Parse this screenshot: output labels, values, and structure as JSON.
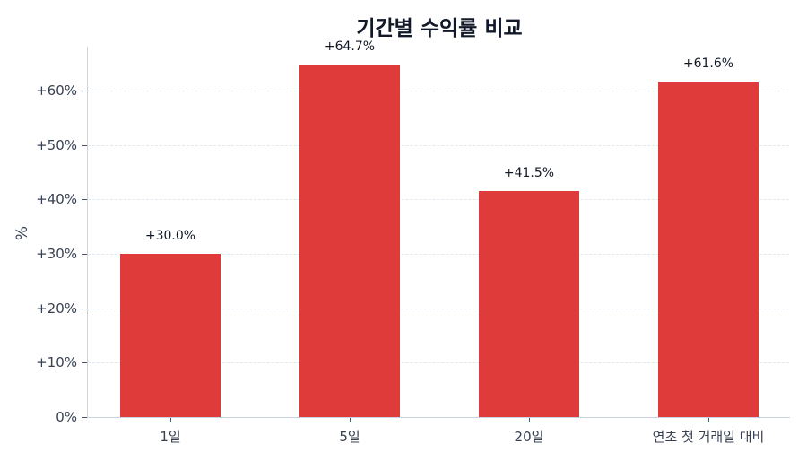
{
  "chart_data": {
    "type": "bar",
    "title": "기간별 수익률 비교",
    "xlabel": "",
    "ylabel": "%",
    "categories": [
      "1일",
      "5일",
      "20일",
      "연초 첫 거래일 대비"
    ],
    "values": [
      30.0,
      64.7,
      41.5,
      61.6
    ],
    "value_labels": [
      "+30.0%",
      "+64.7%",
      "+41.5%",
      "+61.6%"
    ],
    "ylim": [
      0,
      68
    ],
    "yticks": [
      0,
      10,
      20,
      30,
      40,
      50,
      60
    ],
    "ytick_labels": [
      "0%",
      "+10%",
      "+20%",
      "+30%",
      "+40%",
      "+50%",
      "+60%"
    ],
    "grid": true,
    "grid_style": "dashed horizontal",
    "legend": null,
    "bar_color": "#e03b3b"
  }
}
